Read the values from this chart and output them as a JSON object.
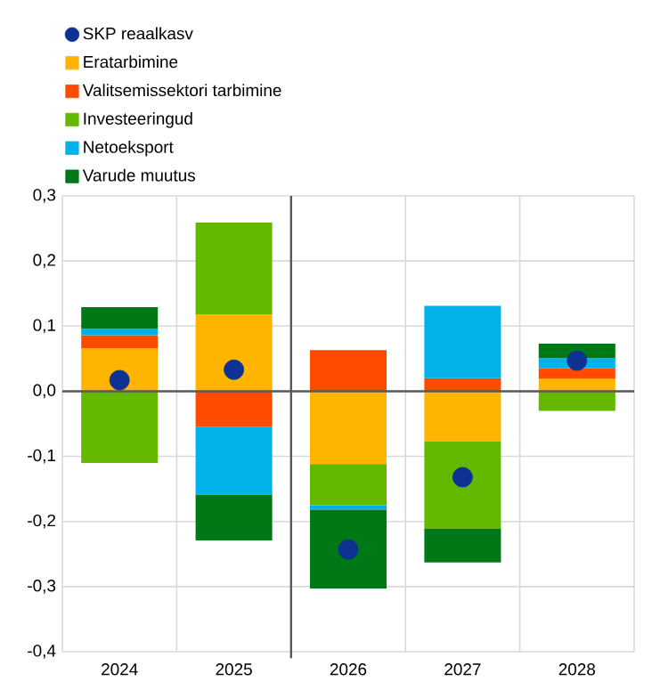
{
  "chart_data": {
    "type": "bar",
    "stacked": true,
    "categories": [
      "2024",
      "2025",
      "2026",
      "2027",
      "2028"
    ],
    "ylim": [
      -0.4,
      0.3
    ],
    "yticks": [
      {
        "value": -0.4,
        "label": "-0,4"
      },
      {
        "value": -0.3,
        "label": "-0,3"
      },
      {
        "value": -0.2,
        "label": "-0,2"
      },
      {
        "value": -0.1,
        "label": "-0,1"
      },
      {
        "value": 0,
        "label": "0,0"
      },
      {
        "value": 0.1,
        "label": "0,1"
      },
      {
        "value": 0.2,
        "label": "0,2"
      },
      {
        "value": 0.3,
        "label": "0,3"
      }
    ],
    "grid": true,
    "legend": "top",
    "series": [
      {
        "name": "SKP reaalkasv",
        "type": "scatter",
        "marker": "circle",
        "color": "#0d3293",
        "values": [
          0.017,
          0.033,
          -0.243,
          -0.132,
          0.047
        ]
      },
      {
        "name": "Eratarbimine",
        "color": "#ffb400",
        "values": [
          0.066,
          0.118,
          -0.112,
          -0.077,
          0.019
        ]
      },
      {
        "name": "Valitsemissektori tarbimine",
        "color": "#ff4b00",
        "values": [
          0.02,
          -0.055,
          0.063,
          0.02,
          0.016
        ]
      },
      {
        "name": "Investeeringud",
        "color": "#65b800",
        "values": [
          -0.11,
          0.141,
          -0.063,
          -0.134,
          -0.03
        ]
      },
      {
        "name": "Netoeksport",
        "color": "#00b1ea",
        "values": [
          0.01,
          -0.104,
          -0.007,
          0.111,
          0.016
        ]
      },
      {
        "name": "Varude muutus",
        "color": "#007816",
        "values": [
          0.033,
          -0.07,
          -0.121,
          -0.052,
          0.022
        ]
      }
    ]
  }
}
